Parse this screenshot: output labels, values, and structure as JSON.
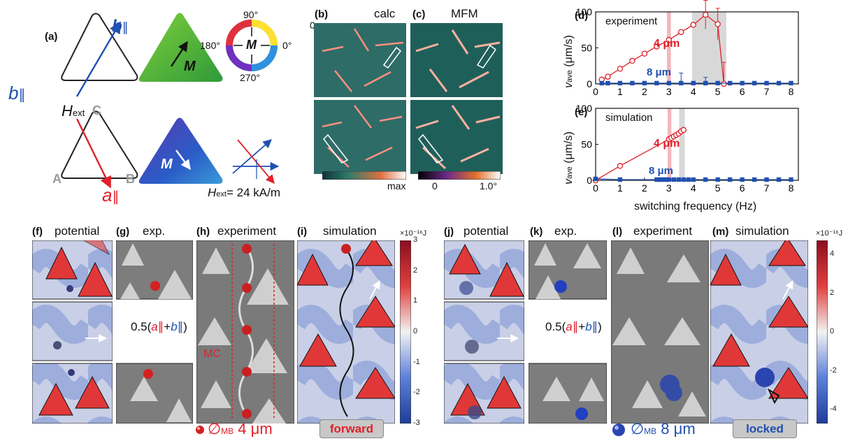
{
  "panel_labels": {
    "a": "(a)",
    "b": "(b)",
    "c": "(c)",
    "d": "(d)",
    "e": "(e)",
    "f": "(f)",
    "g": "(g)",
    "h": "(h)",
    "i": "(i)",
    "j": "(j)",
    "k": "(k)",
    "l": "(l)",
    "m": "(m)"
  },
  "panel_a": {
    "b_vec": "b",
    "a_vec": "a",
    "par": "∥",
    "h_ext": "H",
    "ext_sub": "ext",
    "corner_c": "C",
    "corner_a": "A",
    "corner_b": "B",
    "m_label": "M",
    "wheel": {
      "top": "90°",
      "left": "180°",
      "right": "0°",
      "bottom": "270°",
      "center": "M",
      "corner": "0"
    },
    "h_field_value": "= 24 kA/m"
  },
  "panel_b": {
    "title": "calc",
    "cbar_max": "max"
  },
  "panel_c": {
    "title": "MFM",
    "cbar_min": "0",
    "cbar_max": "1.0°"
  },
  "panel_d": {
    "note": "experiment",
    "label_4": "4 μm",
    "label_8": "8 μm"
  },
  "panel_e": {
    "note": "simulation",
    "label_4": "4 μm",
    "label_8": "8 μm"
  },
  "axes": {
    "ylabel_main": "v",
    "ylabel_sub": "ave",
    "ylabel_unit": " (μm/s)",
    "xlabel": "switching frequency (Hz)"
  },
  "bottom": {
    "f_title": "potential",
    "g_title": "exp.",
    "h_title": "experiment",
    "i_title": "simulation",
    "j_title": "potential",
    "k_title": "exp.",
    "l_title": "experiment",
    "m_title": "simulation",
    "mc": "MC",
    "half_sum_left": "0.5(",
    "half_sum_right": ")",
    "plus": "+",
    "cbar_unit": "×10⁻¹⁶J",
    "cbar_left": [
      "3",
      "2",
      "1",
      "0",
      "-1",
      "-2",
      "-3"
    ],
    "cbar_right": [
      "4",
      "2",
      "0",
      "-2",
      "-4"
    ],
    "diam": "∅",
    "diam_sub": "MB",
    "size_4": "4 μm",
    "size_8": "8 μm",
    "forward": "forward",
    "locked": "locked"
  },
  "colors": {
    "red": "#e0202a",
    "blue": "#2050b0",
    "band_red": "#f4b6bc",
    "band_gray": "#d8d8d8"
  },
  "chart_data": [
    {
      "type": "line",
      "panel": "d",
      "xlim": [
        0,
        8.3
      ],
      "ylim": [
        0,
        100
      ],
      "xticks": [
        0,
        1,
        2,
        3,
        4,
        5,
        6,
        7,
        8
      ],
      "yticks": [
        0,
        50,
        100
      ],
      "ylabel": "v_ave (μm/s)",
      "annotation": "experiment",
      "highlight_bands": [
        {
          "x": [
            2.92,
            3.08
          ],
          "color": "red"
        },
        {
          "x": [
            3.95,
            5.35
          ],
          "color": "gray"
        }
      ],
      "series": [
        {
          "name": "4 μm",
          "marker": "open-circle",
          "color": "#e0202a",
          "x": [
            0.25,
            0.5,
            1,
            1.5,
            2,
            2.5,
            3,
            3.5,
            4,
            4.5,
            5,
            5.25
          ],
          "y": [
            6,
            10,
            21,
            32,
            42,
            52,
            61,
            72,
            82,
            96,
            83,
            0
          ],
          "err": [
            0,
            0,
            0,
            0,
            0,
            0,
            0,
            0,
            0,
            20,
            22,
            30
          ]
        },
        {
          "name": "8 μm",
          "marker": "filled-square",
          "color": "#2050b0",
          "x": [
            0.25,
            0.5,
            1,
            1.5,
            2,
            2.5,
            3,
            3.5,
            4,
            4.5,
            5,
            5.5,
            6,
            6.5,
            7,
            7.5,
            8
          ],
          "y": [
            1,
            1,
            1,
            1,
            1,
            1,
            1,
            1,
            1,
            1,
            1,
            1,
            1,
            1,
            1,
            1,
            1
          ],
          "err": [
            0,
            0,
            0,
            0,
            0,
            0,
            0,
            14,
            0,
            8,
            0,
            0,
            0,
            0,
            0,
            0,
            0
          ]
        }
      ]
    },
    {
      "type": "line",
      "panel": "e",
      "xlim": [
        0,
        8.3
      ],
      "ylim": [
        0,
        100
      ],
      "xticks": [
        0,
        1,
        2,
        3,
        4,
        5,
        6,
        7,
        8
      ],
      "yticks": [
        0,
        50,
        100
      ],
      "xlabel": "switching frequency (Hz)",
      "ylabel": "v_ave (μm/s)",
      "annotation": "simulation",
      "highlight_bands": [
        {
          "x": [
            2.95,
            3.1
          ],
          "color": "red"
        },
        {
          "x": [
            3.42,
            3.65
          ],
          "color": "gray"
        }
      ],
      "series": [
        {
          "name": "4 μm",
          "marker": "open-circle",
          "color": "#e0202a",
          "x": [
            0,
            1,
            3,
            3.1,
            3.2,
            3.3,
            3.4,
            3.5,
            3.6
          ],
          "y": [
            0,
            20,
            57,
            59,
            61,
            63,
            65,
            68,
            70
          ]
        },
        {
          "name": "8 μm",
          "marker": "filled-square",
          "color": "#2050b0",
          "x": [
            0,
            1,
            2.5,
            2.6,
            2.7,
            2.8,
            2.9,
            3,
            3.2,
            3.4,
            3.6,
            3.8,
            4,
            4.5,
            5,
            5.5,
            6,
            6.5,
            7,
            7.5,
            8
          ],
          "y": [
            2,
            1,
            1,
            1,
            1,
            1,
            1,
            1,
            1,
            1,
            1,
            1,
            1,
            1,
            1,
            1,
            1,
            1,
            1,
            1,
            1
          ]
        }
      ]
    }
  ]
}
